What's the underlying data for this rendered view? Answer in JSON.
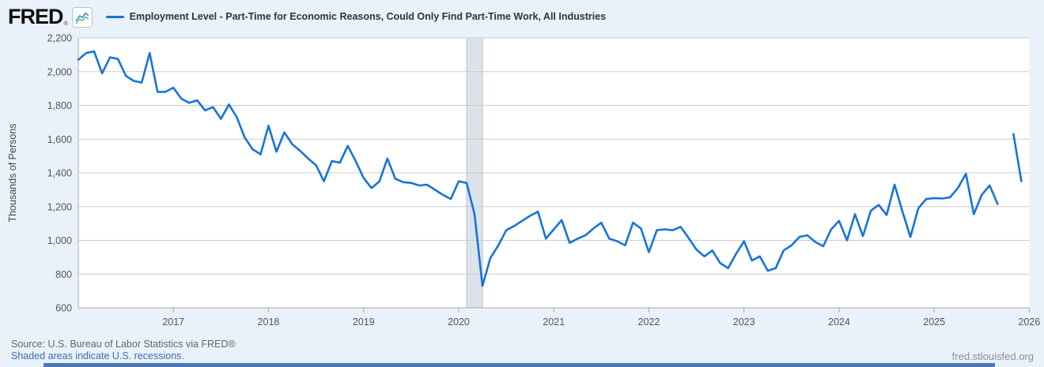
{
  "header": {
    "logo_text": "FRED",
    "logo_registered": "®",
    "series_title": "Employment Level - Part-Time for Economic Reasons, Could Only Find Part-Time Work, All Industries"
  },
  "y_axis": {
    "title": "Thousands of Persons",
    "ticks": [
      "2,200",
      "2,000",
      "1,800",
      "1,600",
      "1,400",
      "1,200",
      "1,000",
      "800",
      "600"
    ]
  },
  "x_axis": {
    "years": [
      "2017",
      "2018",
      "2019",
      "2020",
      "2021",
      "2022",
      "2023",
      "2024",
      "2025",
      "2026"
    ]
  },
  "footer": {
    "source": "Source: U.S. Bureau of Labor Statistics via FRED®",
    "recession_note": "Shaded areas indicate U.S. recessions.",
    "watermark": "fred.stlouisfed.org"
  },
  "colors": {
    "page_background": "#e9f1fb",
    "plot_background": "#ffffff",
    "line": "#1774d9",
    "gridline": "#cccccc",
    "axis_line": "#aaaaaa",
    "recession_band_fill": "#dde3ea",
    "recession_band_edge": "#b9c1ca",
    "tick_text": "#555555",
    "link_blue": "#3c6eb4"
  },
  "chart_data": {
    "type": "line",
    "title": "Employment Level - Part-Time for Economic Reasons, Could Only Find Part-Time Work, All Industries",
    "xlabel": "",
    "ylabel": "Thousands of Persons",
    "ylim": [
      600,
      2200
    ],
    "grid": "horizontal",
    "legend_position": "top-left",
    "frequency": "monthly",
    "x_start": "2016-01",
    "x_end": "2025-12",
    "x_tick_years": [
      2017,
      2018,
      2019,
      2020,
      2021,
      2022,
      2023,
      2024,
      2025,
      2026
    ],
    "recession_band": {
      "start": "2020-02",
      "end": "2020-04"
    },
    "data_gap": "2025-10",
    "series": [
      {
        "name": "Employment Level - Part-Time for Economic Reasons, Could Only Find Part-Time Work, All Industries",
        "color": "#1774d9",
        "units": "Thousands of Persons",
        "values": [
          2070,
          2110,
          2120,
          1990,
          2085,
          2075,
          1975,
          1945,
          1935,
          2110,
          1880,
          1880,
          1905,
          1840,
          1815,
          1830,
          1770,
          1790,
          1720,
          1805,
          1730,
          1610,
          1540,
          1510,
          1680,
          1525,
          1640,
          1570,
          1530,
          1485,
          1445,
          1350,
          1470,
          1460,
          1560,
          1470,
          1370,
          1310,
          1350,
          1485,
          1365,
          1345,
          1340,
          1325,
          1330,
          1300,
          1270,
          1245,
          1350,
          1340,
          1155,
          730,
          895,
          970,
          1060,
          1085,
          1115,
          1145,
          1170,
          1010,
          1065,
          1120,
          985,
          1010,
          1030,
          1070,
          1105,
          1010,
          995,
          970,
          1105,
          1070,
          930,
          1060,
          1065,
          1060,
          1080,
          1015,
          945,
          905,
          940,
          865,
          835,
          920,
          995,
          880,
          905,
          820,
          835,
          940,
          970,
          1020,
          1030,
          990,
          965,
          1065,
          1115,
          1000,
          1155,
          1025,
          1175,
          1210,
          1150,
          1330,
          1170,
          1020,
          1190,
          1245,
          1250,
          1248,
          1255,
          1310,
          1395,
          1155,
          1270,
          1325,
          1215,
          null,
          1630,
          1350
        ]
      }
    ]
  }
}
